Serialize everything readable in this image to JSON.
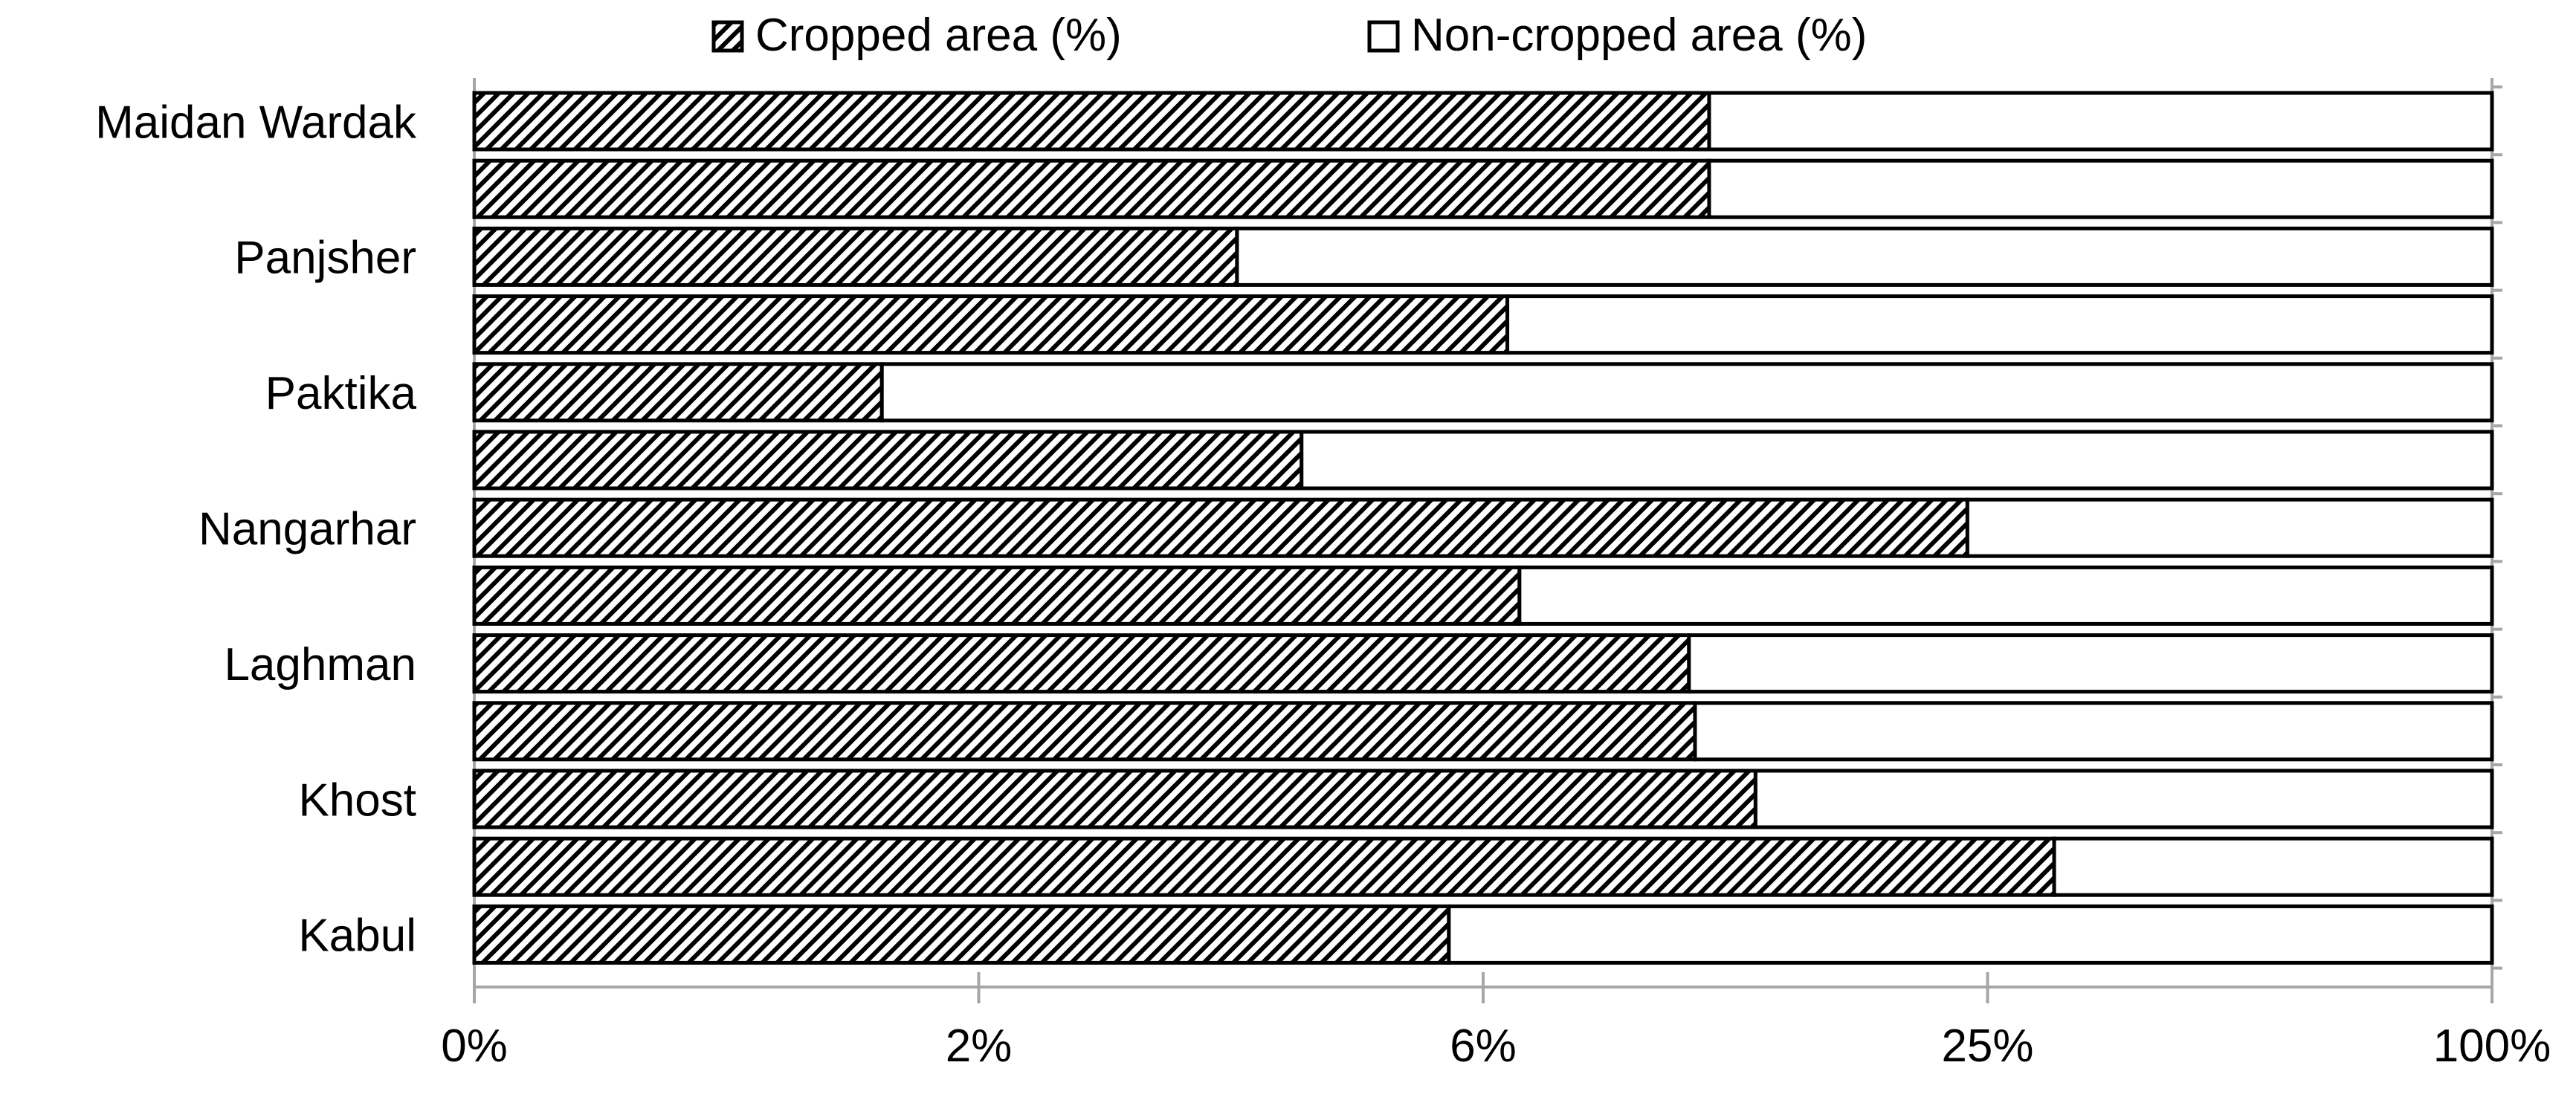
{
  "chart_data": {
    "type": "bar",
    "orientation": "horizontal",
    "stacked": "percent",
    "categories": [
      "Kabul",
      "",
      "Khost",
      "",
      "Laghman",
      "",
      "Nangarhar",
      "",
      "Paktika",
      "",
      "Panjsher",
      "",
      "Maidan Wardak"
    ],
    "series": [
      {
        "name": "Cropped area (%)",
        "fill": "hatched",
        "values": [
          48.3,
          78.3,
          63.5,
          60.5,
          60.2,
          51.8,
          74.0,
          41.0,
          20.2,
          51.2,
          37.8,
          61.2,
          61.2
        ]
      },
      {
        "name": "Non-cropped area (%)",
        "fill": "white",
        "values": [
          51.7,
          21.7,
          36.5,
          39.5,
          39.8,
          48.2,
          26.0,
          59.0,
          79.8,
          48.8,
          62.2,
          38.8,
          38.8
        ]
      }
    ],
    "x_tick_labels": [
      "0%",
      "2%",
      "6%",
      "25%",
      "100%"
    ],
    "xlim": [
      0,
      100
    ],
    "legend_position": "top",
    "grid": false,
    "colors": {
      "bar_stroke": "#000000",
      "hatch": "#000000",
      "axis": "#a6a6a6",
      "text": "#000000",
      "background": "#ffffff"
    }
  }
}
